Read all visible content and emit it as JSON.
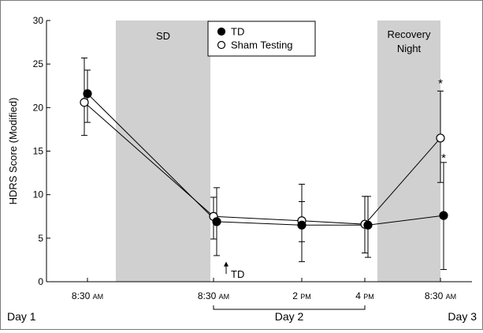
{
  "chart_data": {
    "type": "line",
    "ylabel": "HDRS Score (Modified)",
    "ylim": [
      0,
      30
    ],
    "yticks": [
      0,
      5,
      10,
      15,
      20,
      25,
      30
    ],
    "grid": false,
    "legend_position": "top-center",
    "x_ticks": [
      {
        "main": "8:30",
        "suffix": "AM"
      },
      {
        "main": "8:30",
        "suffix": "AM"
      },
      {
        "main": "2",
        "suffix": "PM"
      },
      {
        "main": "4",
        "suffix": "PM"
      },
      {
        "main": "8:30",
        "suffix": "AM"
      }
    ],
    "x_positions": [
      1,
      3,
      4.4,
      5.4,
      6.6
    ],
    "x_min": 0.35,
    "x_max": 7.1,
    "day_labels": {
      "day1": "Day 1",
      "day2": "Day 2",
      "day3": "Day 3"
    },
    "shaded_regions": [
      {
        "label": "SD",
        "from": 1.45,
        "to": 2.95
      },
      {
        "label_line1": "Recovery",
        "label_line2": "Night",
        "from": 5.6,
        "to": 6.6
      }
    ],
    "annotation_td": {
      "label": "TD",
      "x": 3.2,
      "y_tip": 2.3,
      "y_base": 0.9
    },
    "series": [
      {
        "name": "TD",
        "marker": "filled",
        "color": "#000000",
        "points": [
          {
            "x": 1.0,
            "y": 21.6,
            "lo": 18.3,
            "hi": 24.3
          },
          {
            "x": 3.05,
            "y": 6.9,
            "lo": 3.0,
            "hi": 10.8
          },
          {
            "x": 4.4,
            "y": 6.5,
            "lo": 4.6,
            "hi": 9.2
          },
          {
            "x": 5.45,
            "y": 6.5,
            "lo": 2.8,
            "hi": 9.8
          },
          {
            "x": 6.65,
            "y": 7.6,
            "lo": 1.4,
            "hi": 13.7
          }
        ]
      },
      {
        "name": "Sham Testing",
        "marker": "open",
        "color": "#000000",
        "points": [
          {
            "x": 0.95,
            "y": 20.6,
            "lo": 16.8,
            "hi": 25.7
          },
          {
            "x": 3.0,
            "y": 7.5,
            "lo": 4.9,
            "hi": 9.7
          },
          {
            "x": 4.4,
            "y": 7.0,
            "lo": 2.3,
            "hi": 11.2
          },
          {
            "x": 5.4,
            "y": 6.6,
            "lo": 3.3,
            "hi": 9.8
          },
          {
            "x": 6.6,
            "y": 16.5,
            "lo": 11.4,
            "hi": 21.9
          }
        ]
      }
    ],
    "significance": [
      {
        "symbol": "*",
        "x": 6.6,
        "y": 22.9
      },
      {
        "symbol": "*",
        "x": 6.65,
        "y": 14.3
      }
    ]
  }
}
